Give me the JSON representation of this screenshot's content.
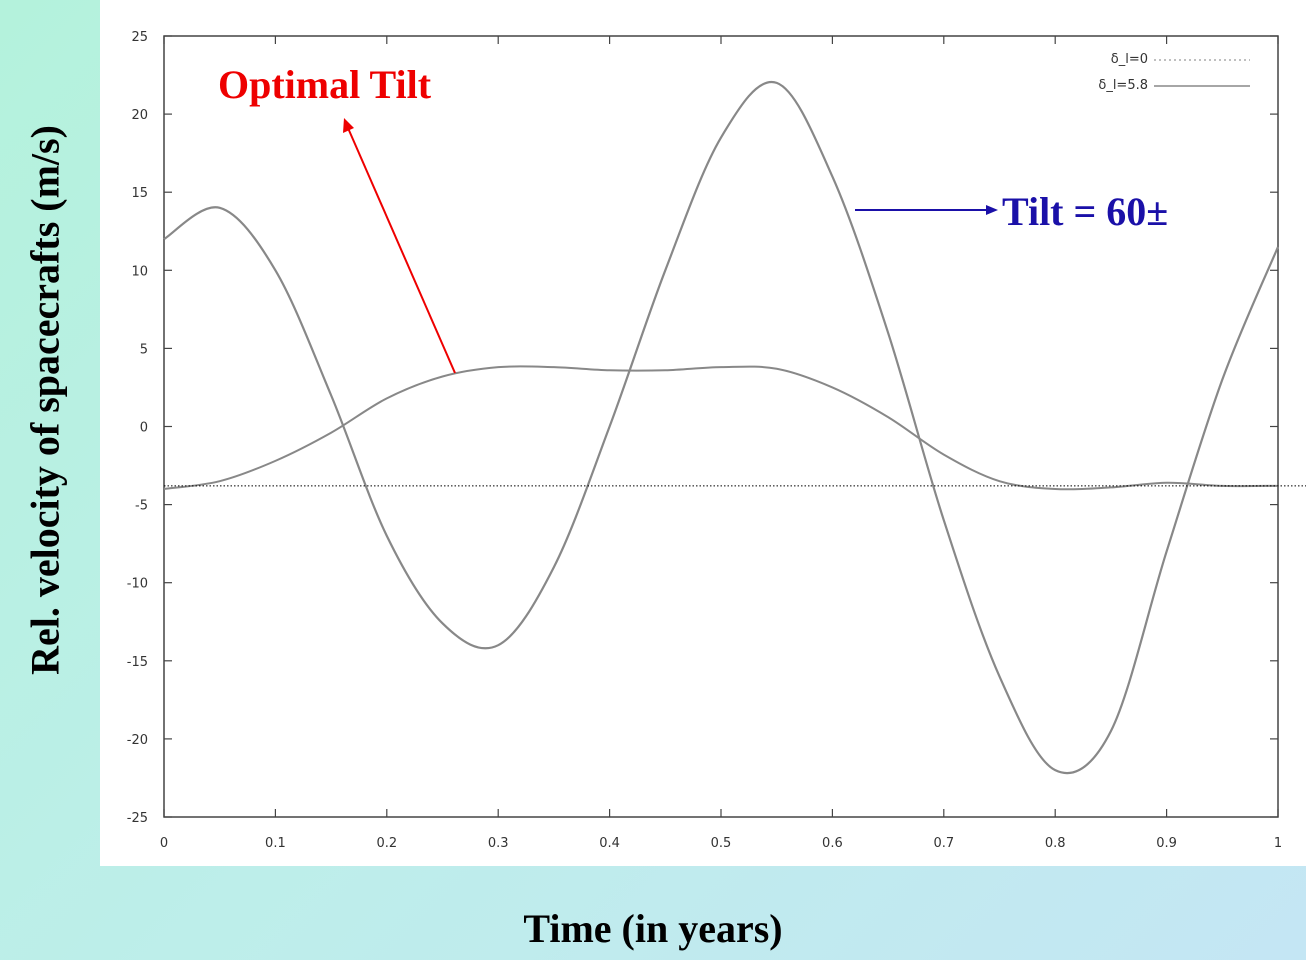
{
  "chart_data": {
    "type": "line",
    "xlabel": "Time (in years)",
    "ylabel": "Rel.  velocity of spacecrafts (m/s)",
    "xlim": [
      0,
      1
    ],
    "ylim": [
      -25,
      25
    ],
    "x_ticks": [
      "0",
      "0.1",
      "0.2",
      "0.3",
      "0.4",
      "0.5",
      "0.6",
      "0.7",
      "0.8",
      "0.9",
      "1"
    ],
    "y_ticks": [
      "25",
      "20",
      "15",
      "10",
      "5",
      "0",
      "-5",
      "-10",
      "-15",
      "-20",
      "-25"
    ],
    "grid": false,
    "legend_position": "top-right",
    "series": [
      {
        "name": "δ_l=0",
        "style": "dotted",
        "color": "#888888",
        "x": [
          0,
          0.05,
          0.1,
          0.15,
          0.2,
          0.25,
          0.3,
          0.35,
          0.4,
          0.45,
          0.5,
          0.55,
          0.6,
          0.65,
          0.7,
          0.75,
          0.8,
          0.85,
          0.9,
          0.95,
          1.0
        ],
        "y": [
          12,
          14,
          10,
          2,
          -7,
          -12.6,
          -14,
          -9,
          0,
          10,
          18.5,
          22,
          16,
          6,
          -6,
          -16,
          -22,
          -19.5,
          -8,
          3,
          11.5
        ]
      },
      {
        "name": "δ_l=5.8",
        "style": "solid",
        "color": "#888888",
        "x": [
          0,
          0.05,
          0.1,
          0.15,
          0.2,
          0.25,
          0.3,
          0.35,
          0.4,
          0.45,
          0.5,
          0.55,
          0.6,
          0.65,
          0.7,
          0.75,
          0.8,
          0.85,
          0.9,
          0.95,
          1.0
        ],
        "y": [
          -4,
          -3.5,
          -2.2,
          -0.4,
          1.8,
          3.2,
          3.8,
          3.8,
          3.6,
          3.6,
          3.8,
          3.7,
          2.5,
          0.6,
          -1.8,
          -3.5,
          -4,
          -3.9,
          -3.6,
          -3.8,
          -3.8
        ]
      }
    ],
    "reference_line": {
      "y": -3.8,
      "style": "dotted",
      "color": "#000000"
    },
    "annotations": [
      {
        "text": "Optimal Tilt",
        "color": "#ee0000"
      },
      {
        "text": "Tilt = 60±",
        "color": "#1a10a8"
      }
    ]
  }
}
